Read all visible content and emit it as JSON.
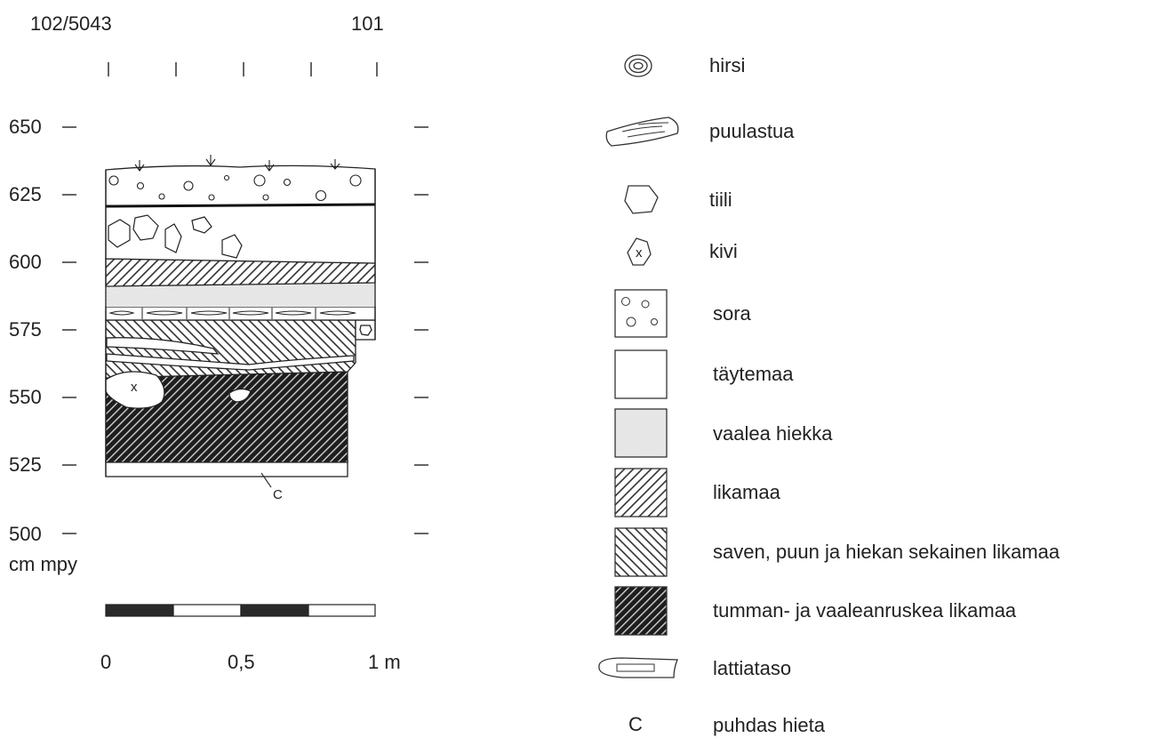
{
  "profile": {
    "left_label": "102/5043",
    "right_label": "101",
    "y_axis_ticks": [
      "650",
      "625",
      "600",
      "575",
      "550",
      "525",
      "500"
    ],
    "y_axis_unit": "cm mpy",
    "stone_marker": "x",
    "label_c": "C"
  },
  "scale_bar": {
    "labels": [
      "0",
      "0,5",
      "1 m"
    ]
  },
  "legend": {
    "items": [
      {
        "symbol": "hirsi-icon",
        "label": "hirsi"
      },
      {
        "symbol": "puulastua-icon",
        "label": "puulastua"
      },
      {
        "symbol": "tiili-icon",
        "label": "tiili"
      },
      {
        "symbol": "kivi-icon",
        "label": "kivi",
        "marker": "x"
      },
      {
        "symbol": "sora-icon",
        "label": "sora"
      },
      {
        "symbol": "taytemaa-icon",
        "label": "täytemaa"
      },
      {
        "symbol": "vaalea-hiekka-icon",
        "label": "vaalea hiekka"
      },
      {
        "symbol": "likamaa-icon",
        "label": "likamaa"
      },
      {
        "symbol": "sekainen-likamaa-icon",
        "label": "saven, puun ja hiekan sekainen likamaa"
      },
      {
        "symbol": "tumma-likamaa-icon",
        "label": "tumman- ja vaaleanruskea likamaa"
      },
      {
        "symbol": "lattiataso-icon",
        "label": "lattiataso"
      },
      {
        "symbol": "puhdas-hieta-icon",
        "label": "puhdas hieta",
        "marker": "C"
      }
    ]
  }
}
